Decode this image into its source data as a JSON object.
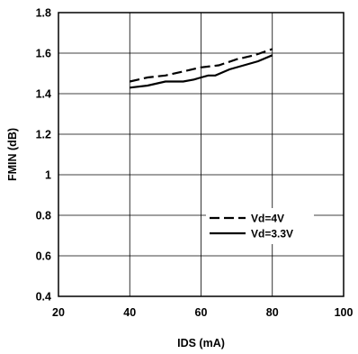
{
  "chart_data": {
    "type": "line",
    "xlabel": "IDS (mA)",
    "ylabel": "FMIN (dB)",
    "xlim": [
      20,
      100
    ],
    "ylim": [
      0.4,
      1.8
    ],
    "xticks": [
      20,
      40,
      60,
      80,
      100
    ],
    "yticks": [
      0.4,
      0.6,
      0.8,
      1.0,
      1.2,
      1.4,
      1.6,
      1.8
    ],
    "xtick_labels": [
      "20",
      "40",
      "60",
      "80",
      "100"
    ],
    "ytick_labels": [
      "0.4",
      "0.6",
      "0.8",
      "1",
      "1.2",
      "1.4",
      "1.6",
      "1.8"
    ],
    "grid": true,
    "legend_position": "bottom-right",
    "series": [
      {
        "name": "Vd=4V",
        "style": "dashed",
        "color": "#000000",
        "x": [
          40,
          45,
          50,
          55,
          60,
          65,
          70,
          75,
          80
        ],
        "y": [
          1.46,
          1.48,
          1.49,
          1.51,
          1.53,
          1.54,
          1.57,
          1.59,
          1.62
        ]
      },
      {
        "name": "Vd=3.3V",
        "style": "solid",
        "color": "#000000",
        "x": [
          40,
          45,
          50,
          55,
          58,
          60,
          62,
          64,
          68,
          72,
          76,
          80
        ],
        "y": [
          1.43,
          1.44,
          1.46,
          1.46,
          1.47,
          1.48,
          1.49,
          1.49,
          1.52,
          1.54,
          1.56,
          1.59
        ]
      }
    ]
  }
}
